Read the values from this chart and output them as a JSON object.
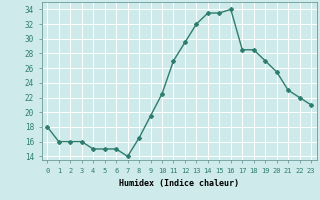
{
  "x": [
    0,
    1,
    2,
    3,
    4,
    5,
    6,
    7,
    8,
    9,
    10,
    11,
    12,
    13,
    14,
    15,
    16,
    17,
    18,
    19,
    20,
    21,
    22,
    23
  ],
  "y": [
    18,
    16,
    16,
    16,
    15,
    15,
    15,
    14,
    16.5,
    19.5,
    22.5,
    27,
    29.5,
    32,
    33.5,
    33.5,
    34,
    28.5,
    28.5,
    27,
    25.5,
    23,
    22,
    21
  ],
  "line_color": "#2e7d6e",
  "marker": "D",
  "marker_size": 2.0,
  "bg_color": "#ceeaea",
  "grid_color": "#ffffff",
  "xlabel": "Humidex (Indice chaleur)",
  "ylim": [
    13.5,
    35
  ],
  "xlim": [
    -0.5,
    23.5
  ],
  "yticks": [
    14,
    16,
    18,
    20,
    22,
    24,
    26,
    28,
    30,
    32,
    34
  ],
  "xticks": [
    0,
    1,
    2,
    3,
    4,
    5,
    6,
    7,
    8,
    9,
    10,
    11,
    12,
    13,
    14,
    15,
    16,
    17,
    18,
    19,
    20,
    21,
    22,
    23
  ],
  "xtick_labels": [
    "0",
    "1",
    "2",
    "3",
    "4",
    "5",
    "6",
    "7",
    "8",
    "9",
    "10",
    "11",
    "12",
    "13",
    "14",
    "15",
    "16",
    "17",
    "18",
    "19",
    "20",
    "21",
    "22",
    "23"
  ],
  "line_width": 1.0
}
